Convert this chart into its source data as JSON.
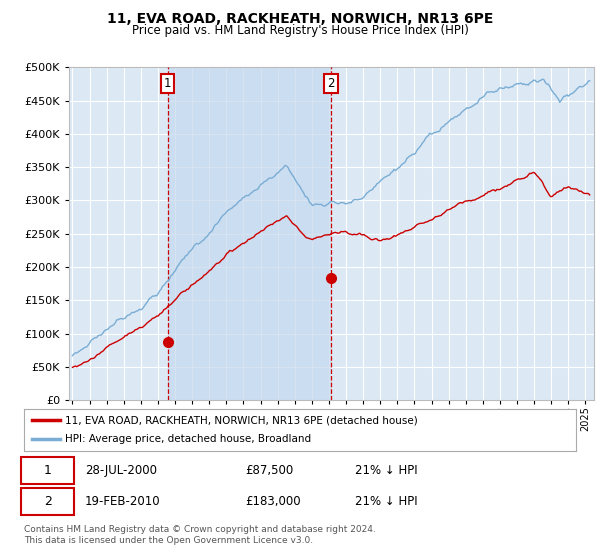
{
  "title": "11, EVA ROAD, RACKHEATH, NORWICH, NR13 6PE",
  "subtitle": "Price paid vs. HM Land Registry's House Price Index (HPI)",
  "legend_line1": "11, EVA ROAD, RACKHEATH, NORWICH, NR13 6PE (detached house)",
  "legend_line2": "HPI: Average price, detached house, Broadland",
  "transaction1_date": "28-JUL-2000",
  "transaction1_price": "£87,500",
  "transaction1_hpi": "21% ↓ HPI",
  "transaction2_date": "19-FEB-2010",
  "transaction2_price": "£183,000",
  "transaction2_hpi": "21% ↓ HPI",
  "footer": "Contains HM Land Registry data © Crown copyright and database right 2024.\nThis data is licensed under the Open Government Licence v3.0.",
  "ylim": [
    0,
    500000
  ],
  "yticks": [
    0,
    50000,
    100000,
    150000,
    200000,
    250000,
    300000,
    350000,
    400000,
    450000,
    500000
  ],
  "background_color": "#ffffff",
  "plot_bg_color": "#dce9f5",
  "shade_color": "#c5d8ef",
  "grid_color": "#ffffff",
  "red_color": "#cc0000",
  "blue_color": "#7aadd4",
  "marker1_x": 2000.57,
  "marker1_y": 87500,
  "marker2_x": 2010.12,
  "marker2_y": 183000,
  "xmin": 1994.8,
  "xmax": 2025.5
}
